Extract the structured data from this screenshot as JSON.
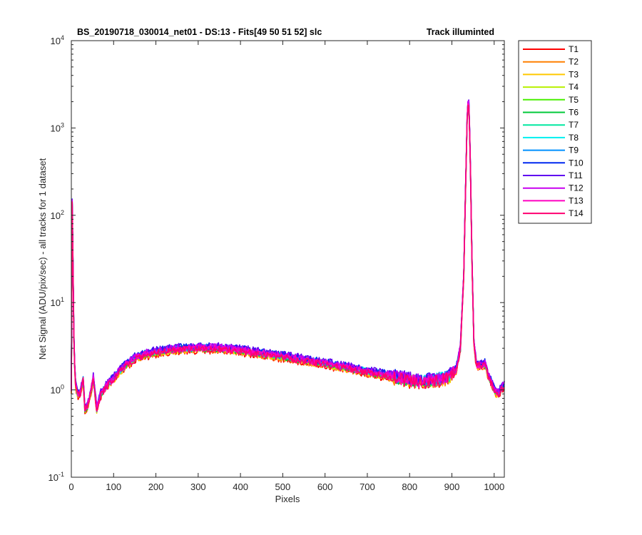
{
  "chart_data": {
    "type": "line",
    "title_left": "BS_20190718_030014_net01 - DS:13 - Fits[49  50  51  52]   slc",
    "title_right": "Track illuminted",
    "xlabel": "Pixels",
    "ylabel": "Net Signal (ADU/pix/sec) - all tracks for 1 dataset",
    "xlim": [
      0,
      1024
    ],
    "ylim": [
      0.1,
      10000
    ],
    "yscale": "log",
    "grid": false,
    "legend_position": "outside-top-right",
    "x_ticks": [
      0,
      100,
      200,
      300,
      400,
      500,
      600,
      700,
      800,
      900,
      1000
    ],
    "x_tick_labels": [
      "0",
      "100",
      "200",
      "300",
      "400",
      "500",
      "600",
      "700",
      "800",
      "900",
      "1000"
    ],
    "y_ticks": [
      0.1,
      1,
      10,
      100,
      1000,
      10000
    ],
    "y_tick_labels": [
      {
        "base": "10",
        "exp": "-1"
      },
      {
        "base": "10",
        "exp": "0"
      },
      {
        "base": "10",
        "exp": "1"
      },
      {
        "base": "10",
        "exp": "2"
      },
      {
        "base": "10",
        "exp": "3"
      },
      {
        "base": "10",
        "exp": "4"
      }
    ],
    "profile": {
      "x": [
        0,
        2,
        4,
        6,
        9,
        15,
        22,
        28,
        32,
        38,
        45,
        52,
        60,
        70,
        80,
        90,
        100,
        110,
        130,
        150,
        175,
        200,
        230,
        260,
        300,
        340,
        380,
        420,
        460,
        500,
        550,
        600,
        650,
        700,
        750,
        800,
        830,
        860,
        890,
        910,
        920,
        928,
        933,
        937,
        940,
        943,
        947,
        952,
        958,
        965,
        972,
        978,
        982,
        988,
        995,
        1003,
        1010,
        1018,
        1024
      ],
      "y": [
        1.0,
        140,
        25,
        4.0,
        1.3,
        0.85,
        0.95,
        1.3,
        0.6,
        0.65,
        0.9,
        1.35,
        0.6,
        0.9,
        1.05,
        1.2,
        1.35,
        1.55,
        1.95,
        2.3,
        2.55,
        2.7,
        2.85,
        2.95,
        3.0,
        3.0,
        2.9,
        2.75,
        2.55,
        2.4,
        2.2,
        2.0,
        1.8,
        1.6,
        1.45,
        1.3,
        1.25,
        1.3,
        1.4,
        1.7,
        3.0,
        20,
        300,
        1900,
        1900,
        600,
        40,
        3.5,
        1.9,
        1.95,
        1.9,
        2.0,
        1.7,
        1.4,
        1.15,
        0.95,
        0.9,
        1.05,
        1.1
      ],
      "note": ""
    },
    "series": [
      {
        "name": "T1",
        "color": "#ff0000",
        "scale": 0.94
      },
      {
        "name": "T2",
        "color": "#ff8000",
        "scale": 0.96
      },
      {
        "name": "T3",
        "color": "#ffc800",
        "scale": 0.97
      },
      {
        "name": "T4",
        "color": "#b8f000",
        "scale": 0.99
      },
      {
        "name": "T5",
        "color": "#48f000",
        "scale": 1.01
      },
      {
        "name": "T6",
        "color": "#00c838",
        "scale": 1.0
      },
      {
        "name": "T7",
        "color": "#00e8a0",
        "scale": 1.02
      },
      {
        "name": "T8",
        "color": "#00f0f0",
        "scale": 1.02
      },
      {
        "name": "T9",
        "color": "#0090ff",
        "scale": 1.03
      },
      {
        "name": "T10",
        "color": "#0028f0",
        "scale": 1.06
      },
      {
        "name": "T11",
        "color": "#6000f0",
        "scale": 1.07
      },
      {
        "name": "T12",
        "color": "#c800f0",
        "scale": 1.04
      },
      {
        "name": "T13",
        "color": "#ff00c0",
        "scale": 1.0
      },
      {
        "name": "T14",
        "color": "#ff0070",
        "scale": 0.98
      }
    ]
  }
}
